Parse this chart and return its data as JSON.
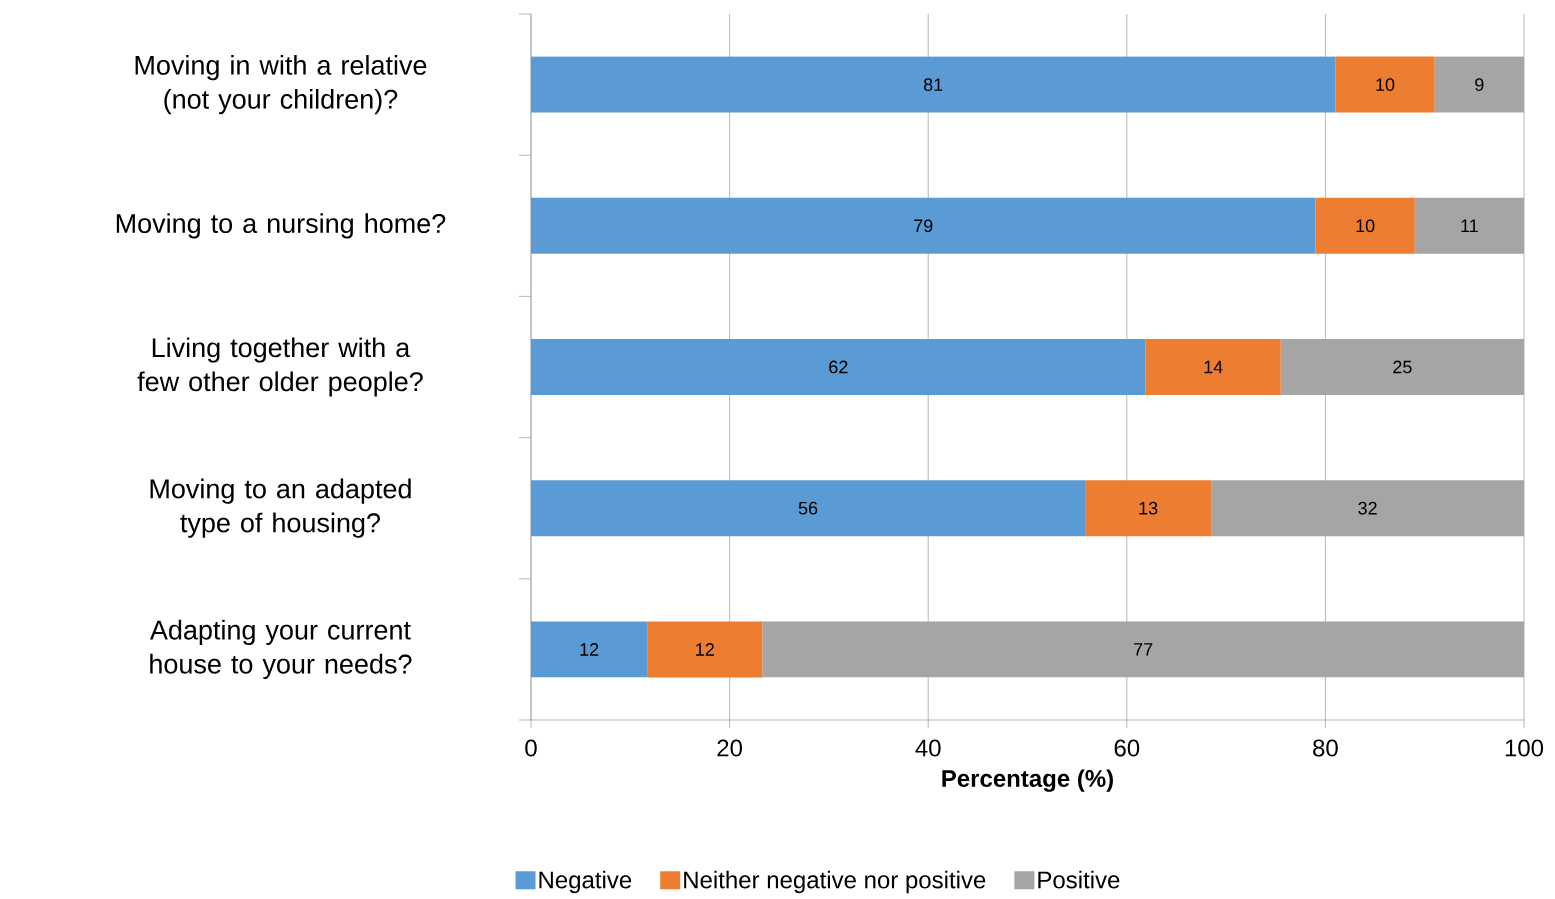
{
  "chart_data": {
    "type": "bar",
    "orientation": "horizontal",
    "stacked": true,
    "xlabel": "Percentage (%)",
    "categories": [
      "Moving in with a relative (not your children)?",
      "Moving to a nursing home?",
      "Living together with a few other older people?",
      "Moving to an adapted type of housing?",
      "Adapting your current house to your needs?"
    ],
    "series": [
      {
        "name": "Negative",
        "color": "#5b9bd5",
        "values": [
          81,
          79,
          61.9,
          55.8,
          11.7
        ],
        "value_labels": [
          "81",
          "79",
          "62",
          "56",
          "12"
        ]
      },
      {
        "name": "Neither negative nor positive",
        "color": "#ed7d31",
        "values": [
          10,
          10,
          13.6,
          12.7,
          11.6
        ],
        "value_labels": [
          "10",
          "10",
          "14",
          "13",
          "12"
        ]
      },
      {
        "name": "Positive",
        "color": "#a5a5a5",
        "values": [
          9,
          11,
          24.5,
          31.5,
          76.7
        ],
        "value_labels": [
          "9",
          "11",
          "25",
          "32",
          "77"
        ]
      }
    ],
    "xlim": [
      0,
      100
    ],
    "xticks": [
      0,
      20,
      40,
      60,
      80,
      100
    ],
    "grid": "x",
    "legend": "bottom"
  }
}
